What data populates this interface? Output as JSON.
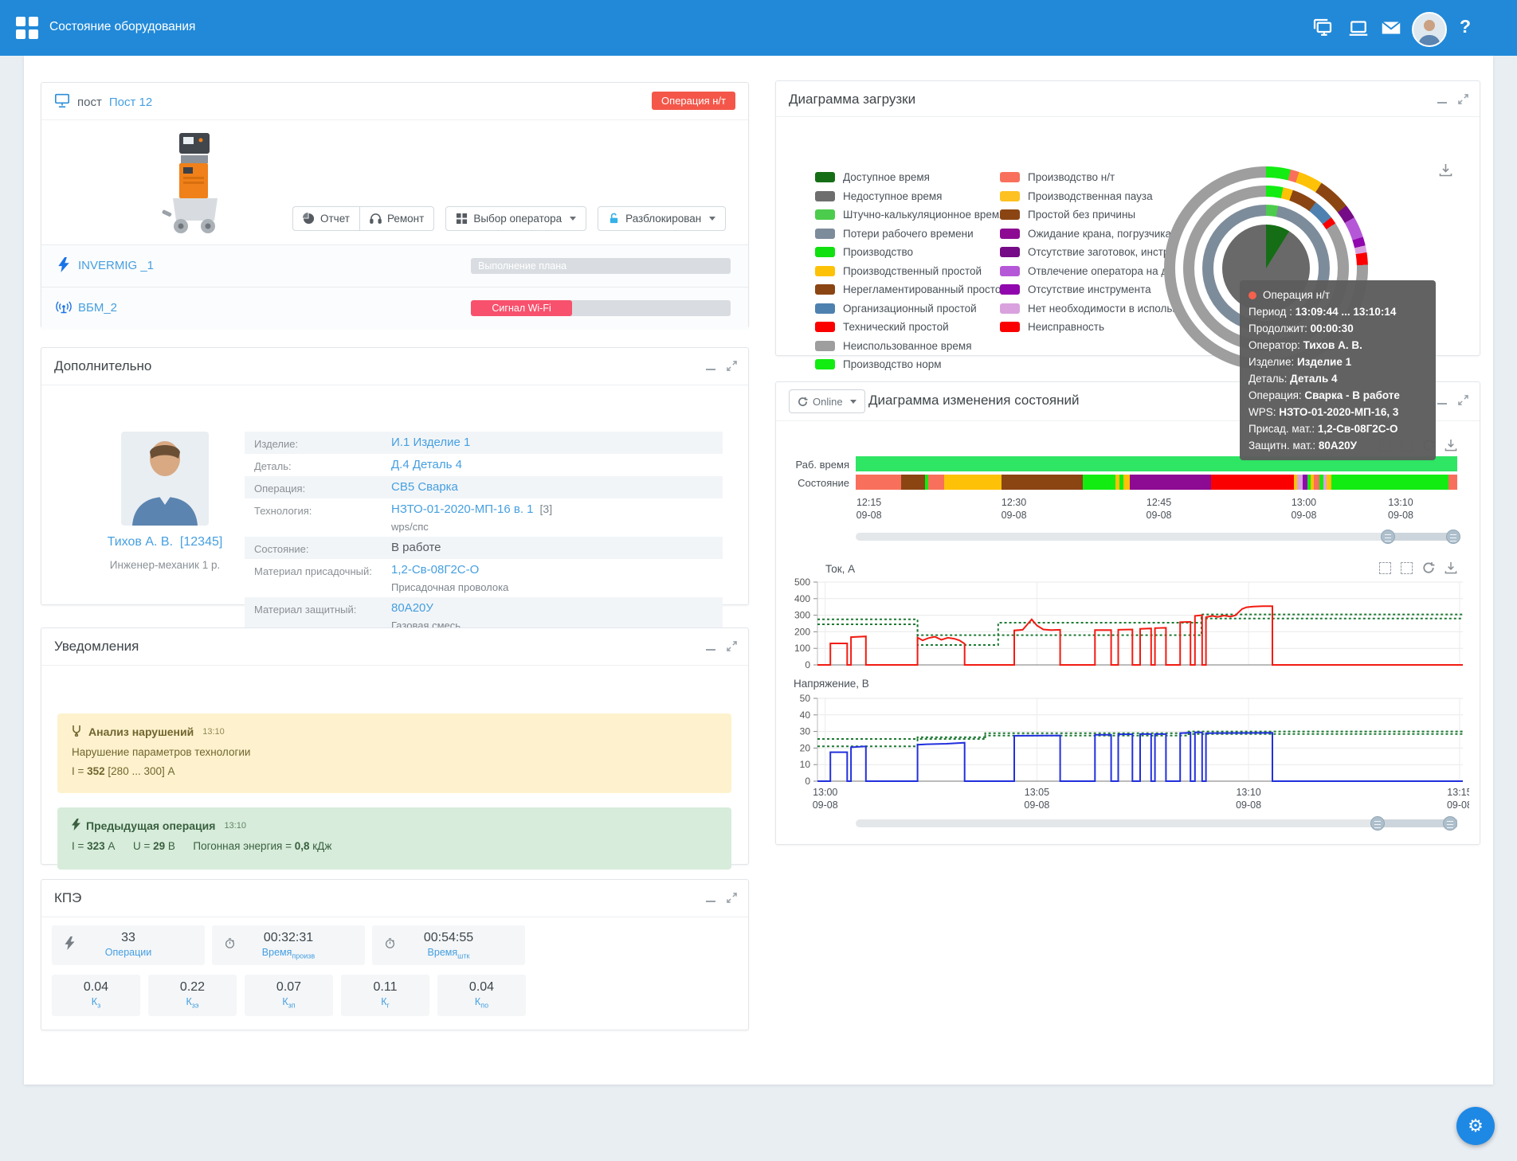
{
  "colors": {
    "topbar": "#2189d8",
    "link": "#459fe0",
    "badge_red": "#f4574a",
    "wifi_pink": "#f8516d",
    "series_current": "#f21b12",
    "series_voltage": "#2230dd",
    "series_bound": "#1d7a33",
    "worktime_green": "#2ee564",
    "tooltip_bg": "#5d5d5d"
  },
  "palette": {
    "darkgreen": "#156e15",
    "unavail": "#6e6e6e",
    "midgreen": "#4ccc4c",
    "slate": "#7d8c9b",
    "bright": "#10e010",
    "gold": "#fdc107",
    "brown": "#8b4513",
    "steel": "#4e81b0",
    "red": "#fb0000",
    "gray": "#9e9e9e",
    "norm": "#12ec12",
    "salmon": "#f8705c",
    "gold2": "#fdc121",
    "purple": "#8d0b92",
    "darkpurple": "#750b86",
    "orchid": "#b558d8",
    "violet": "#9007ad",
    "plum": "#d9a2de",
    "center_gray": "#696969"
  },
  "header": {
    "title": "Состояние оборудования"
  },
  "post_card": {
    "label": "пост",
    "name": "Пост 12",
    "status_badge": "Операция н/т",
    "buttons": [
      {
        "icon": "pie",
        "label": "Отчет",
        "caret": false
      },
      {
        "icon": "headset",
        "label": "Ремонт",
        "caret": false
      },
      {
        "icon": "grid",
        "label": "Выбор оператора",
        "caret": true
      },
      {
        "icon": "unlock",
        "label": "Разблокирован",
        "caret": true
      }
    ],
    "devices": [
      {
        "icon": "bolt",
        "name": "INVERMIG _1",
        "bar_label": "Выполнение плана",
        "bar_fill": 0
      },
      {
        "icon": "broadcast",
        "name": "ВБМ_2",
        "bar_label": "Сигнал Wi-Fi",
        "bar_fill": 39
      }
    ]
  },
  "details_card": {
    "title": "Дополнительно",
    "operator_name": "Тихов А. В.",
    "operator_id": "[12345]",
    "operator_role": "Инженер-механик 1 р.",
    "rows": [
      {
        "label": "Изделие:",
        "link": "И.1 Изделие 1"
      },
      {
        "label": "Деталь:",
        "link": "Д.4 Деталь 4"
      },
      {
        "label": "Операция:",
        "link": "СВ5 Сварка"
      },
      {
        "label": "Технология:",
        "link": "НЗТО-01-2020-МП-16 в. 1",
        "extra": "[3]",
        "sub": "wps/спс"
      },
      {
        "label": "Состояние:",
        "text": "В работе"
      },
      {
        "label": "Материал присадочный:",
        "link": "1,2-Св-08Г2С-О",
        "sub": "Присадочная проволока"
      },
      {
        "label": "Материал защитный:",
        "link": "80А20У",
        "sub": "Газовая смесь"
      }
    ]
  },
  "notifications_card": {
    "title": "Уведомления",
    "warning": {
      "title": "Анализ нарушений",
      "time": "13:10",
      "line": "Нарушение параметров технологии",
      "value_line": [
        [
          "I = ",
          false
        ],
        [
          "352",
          true
        ],
        [
          " [280 ... 300] А",
          false
        ]
      ]
    },
    "success": {
      "title": "Предыдущая операция",
      "time": "13:10",
      "value_line": [
        [
          "I = ",
          false
        ],
        [
          "323",
          true
        ],
        [
          " А",
          false
        ],
        [
          "      U = ",
          false
        ],
        [
          "29",
          true
        ],
        [
          " В",
          false
        ],
        [
          "      Погонная энергия = ",
          false
        ],
        [
          "0,8",
          true
        ],
        [
          " кДж",
          false
        ]
      ]
    }
  },
  "kpi_card": {
    "title": "КПЭ",
    "top": [
      {
        "icon": "bolt",
        "value": "33",
        "label": "Операции",
        "sub": ""
      },
      {
        "icon": "timer",
        "value": "00:32:31",
        "label": "Время",
        "sub": "произв"
      },
      {
        "icon": "timer",
        "value": "00:54:55",
        "label": "Время",
        "sub": "штк"
      }
    ],
    "bottom": [
      {
        "value": "0.04",
        "label": "К",
        "sub": "з"
      },
      {
        "value": "0.22",
        "label": "К",
        "sub": "зэ"
      },
      {
        "value": "0.07",
        "label": "К",
        "sub": "зп"
      },
      {
        "value": "0.11",
        "label": "К",
        "sub": "г"
      },
      {
        "value": "0.04",
        "label": "К",
        "sub": "по"
      }
    ]
  },
  "load_card": {
    "title": "Диаграмма загрузки",
    "legend_left": [
      {
        "color": "darkgreen",
        "label": "Доступное время"
      },
      {
        "color": "unavail",
        "label": "Недоступное время"
      },
      {
        "color": "midgreen",
        "label": "Штучно-калькуляционное время"
      },
      {
        "color": "slate",
        "label": "Потери рабочего времени"
      },
      {
        "color": "bright",
        "label": "Производство"
      },
      {
        "color": "gold",
        "label": "Производственный простой"
      },
      {
        "color": "brown",
        "label": "Нерегламентированный простой"
      },
      {
        "color": "steel",
        "label": "Организационный простой"
      },
      {
        "color": "red",
        "label": "Технический простой"
      },
      {
        "color": "gray",
        "label": "Неиспользованное время"
      },
      {
        "color": "norm",
        "label": "Производство норм"
      }
    ],
    "legend_right": [
      {
        "color": "salmon",
        "label": "Производство н/т"
      },
      {
        "color": "gold2",
        "label": "Производственная пауза"
      },
      {
        "color": "brown",
        "label": "Простой без причины"
      },
      {
        "color": "purple",
        "label": "Ожидание крана, погрузчика"
      },
      {
        "color": "darkpurple",
        "label": "Отсутствие заготовок, инструмента"
      },
      {
        "color": "orchid",
        "label": "Отвлечение оператора на др. работы"
      },
      {
        "color": "violet",
        "label": "Отсутствие инструмента"
      },
      {
        "color": "plum",
        "label": "Нет необходимости в использовании"
      },
      {
        "color": "red",
        "label": "Неисправность"
      }
    ]
  },
  "tooltip": {
    "title": "Операция н/т",
    "rows": [
      [
        "Период : ",
        "13:09:44 ... 13:10:14"
      ],
      [
        "Продолжит: ",
        "00:00:30"
      ],
      [
        "Оператор: ",
        "Тихов А. В."
      ],
      [
        "Изделие: ",
        "Изделие 1"
      ],
      [
        "Деталь: ",
        "Деталь 4"
      ],
      [
        "Операция: ",
        "Сварка - В работе"
      ],
      [
        "WPS: ",
        "НЗТО-01-2020-МП-16, 3"
      ],
      [
        "Присад. мат.: ",
        "1,2-Св-08Г2С-О"
      ],
      [
        "Защитн. мат.: ",
        "80А20У"
      ]
    ]
  },
  "states_card": {
    "title": "Диаграмма изменения состояний",
    "online_label": "Online",
    "worktime_label": "Раб. время",
    "state_label": "Состояние"
  },
  "chart_data": {
    "donut": {
      "type": "pie",
      "rings": [
        [
          [
            "norm",
            14
          ],
          [
            "salmon",
            5
          ],
          [
            "gold",
            14
          ],
          [
            "brown",
            19
          ],
          [
            "darkpurple",
            8
          ],
          [
            "orchid",
            12
          ],
          [
            "violet",
            5
          ],
          [
            "plum",
            4
          ],
          [
            "red",
            7
          ],
          [
            "gray",
            272
          ]
        ],
        [
          [
            "norm",
            12
          ],
          [
            "gold",
            7
          ],
          [
            "brown",
            18
          ],
          [
            "steel",
            15
          ],
          [
            "red",
            5
          ],
          [
            "gray",
            303
          ]
        ],
        [
          [
            "midgreen",
            11
          ],
          [
            "slate",
            349
          ]
        ]
      ],
      "center": [
        [
          "darkgreen",
          32
        ],
        [
          "center_gray",
          328
        ]
      ]
    },
    "state_timeline": {
      "type": "bar",
      "worktime_color": "#2ee564",
      "segments": [
        [
          "salmon",
          7.5
        ],
        [
          "brown",
          4
        ],
        [
          "norm",
          0.6
        ],
        [
          "salmon",
          2.6
        ],
        [
          "gold",
          9.5
        ],
        [
          "brown",
          13.5
        ],
        [
          "norm",
          5.5
        ],
        [
          "gold",
          0.7
        ],
        [
          "norm",
          0.6
        ],
        [
          "gold",
          1.1
        ],
        [
          "purple",
          13.5
        ],
        [
          "red",
          13.8
        ],
        [
          "gold",
          0.5
        ],
        [
          "plum",
          0.9
        ],
        [
          "violet",
          0.8
        ],
        [
          "norm",
          0.5
        ],
        [
          "gold",
          0.6
        ],
        [
          "salmon",
          0.9
        ],
        [
          "norm",
          0.7
        ],
        [
          "plum",
          0.5
        ],
        [
          "gold",
          0.8
        ],
        [
          "norm",
          19.4
        ],
        [
          "salmon",
          1.5
        ]
      ],
      "xticks": [
        {
          "t": "12:15",
          "f": 0.022
        },
        {
          "t": "12:30",
          "f": 0.263
        },
        {
          "t": "12:45",
          "f": 0.504
        },
        {
          "t": "13:00",
          "f": 0.745
        },
        {
          "t": "13:10",
          "f": 0.906
        }
      ],
      "date": "09-08"
    },
    "current": {
      "type": "line",
      "title": "Ток, А",
      "ylim": [
        0,
        500
      ],
      "yticks": [
        0,
        100,
        200,
        300,
        400,
        500
      ],
      "line": [
        [
          0,
          0
        ],
        [
          0.02,
          0
        ],
        [
          0.02,
          130
        ],
        [
          0.046,
          130
        ],
        [
          0.046,
          0
        ],
        [
          0.052,
          0
        ],
        [
          0.052,
          168
        ],
        [
          0.075,
          172
        ],
        [
          0.075,
          0
        ],
        [
          0.155,
          0
        ],
        [
          0.155,
          165
        ],
        [
          0.163,
          148
        ],
        [
          0.172,
          162
        ],
        [
          0.182,
          170
        ],
        [
          0.192,
          152
        ],
        [
          0.202,
          164
        ],
        [
          0.212,
          158
        ],
        [
          0.22,
          148
        ],
        [
          0.228,
          128
        ],
        [
          0.228,
          0
        ],
        [
          0.305,
          0
        ],
        [
          0.305,
          208
        ],
        [
          0.318,
          212
        ],
        [
          0.326,
          248
        ],
        [
          0.332,
          275
        ],
        [
          0.34,
          238
        ],
        [
          0.35,
          214
        ],
        [
          0.362,
          210
        ],
        [
          0.376,
          212
        ],
        [
          0.376,
          0
        ],
        [
          0.43,
          0
        ],
        [
          0.43,
          210
        ],
        [
          0.455,
          210
        ],
        [
          0.455,
          0
        ],
        [
          0.466,
          0
        ],
        [
          0.466,
          212
        ],
        [
          0.488,
          214
        ],
        [
          0.488,
          0
        ],
        [
          0.5,
          0
        ],
        [
          0.5,
          218
        ],
        [
          0.517,
          220
        ],
        [
          0.517,
          0
        ],
        [
          0.523,
          0
        ],
        [
          0.523,
          222
        ],
        [
          0.54,
          224
        ],
        [
          0.54,
          0
        ],
        [
          0.562,
          0
        ],
        [
          0.562,
          258
        ],
        [
          0.578,
          260
        ],
        [
          0.578,
          0
        ],
        [
          0.585,
          0
        ],
        [
          0.585,
          296
        ],
        [
          0.596,
          300
        ],
        [
          0.596,
          0
        ],
        [
          0.602,
          0
        ],
        [
          0.602,
          288
        ],
        [
          0.612,
          296
        ],
        [
          0.62,
          290
        ],
        [
          0.63,
          298
        ],
        [
          0.64,
          292
        ],
        [
          0.648,
          300
        ],
        [
          0.652,
          316
        ],
        [
          0.658,
          338
        ],
        [
          0.665,
          348
        ],
        [
          0.675,
          352
        ],
        [
          0.69,
          355
        ],
        [
          0.705,
          355
        ],
        [
          0.705,
          0
        ],
        [
          1,
          0
        ]
      ],
      "upper": [
        [
          0,
          275
        ],
        [
          0.155,
          275
        ],
        [
          0.155,
          180
        ],
        [
          0.28,
          180
        ],
        [
          0.28,
          255
        ],
        [
          0.595,
          255
        ],
        [
          0.595,
          305
        ],
        [
          1,
          305
        ]
      ],
      "lower": [
        [
          0,
          245
        ],
        [
          0.155,
          245
        ],
        [
          0.155,
          120
        ],
        [
          0.28,
          120
        ],
        [
          0.28,
          180
        ],
        [
          0.595,
          180
        ],
        [
          0.595,
          280
        ],
        [
          1,
          280
        ]
      ]
    },
    "voltage": {
      "type": "line",
      "title": "Напряжение, В",
      "ylim": [
        0,
        50
      ],
      "yticks": [
        0,
        10,
        20,
        30,
        40,
        50
      ],
      "line": [
        [
          0,
          0
        ],
        [
          0.02,
          0
        ],
        [
          0.02,
          17.5
        ],
        [
          0.046,
          17.5
        ],
        [
          0.046,
          0
        ],
        [
          0.052,
          0
        ],
        [
          0.052,
          20.5
        ],
        [
          0.075,
          21
        ],
        [
          0.075,
          0
        ],
        [
          0.155,
          0
        ],
        [
          0.155,
          22
        ],
        [
          0.17,
          22.3
        ],
        [
          0.2,
          22.6
        ],
        [
          0.228,
          23.2
        ],
        [
          0.228,
          0
        ],
        [
          0.305,
          0
        ],
        [
          0.305,
          27.4
        ],
        [
          0.376,
          27.6
        ],
        [
          0.376,
          0
        ],
        [
          0.43,
          0
        ],
        [
          0.43,
          28
        ],
        [
          0.455,
          28
        ],
        [
          0.455,
          0
        ],
        [
          0.466,
          0
        ],
        [
          0.466,
          28.3
        ],
        [
          0.488,
          28.3
        ],
        [
          0.488,
          0
        ],
        [
          0.5,
          0
        ],
        [
          0.5,
          28.4
        ],
        [
          0.517,
          28.4
        ],
        [
          0.517,
          0
        ],
        [
          0.523,
          0
        ],
        [
          0.523,
          28.4
        ],
        [
          0.54,
          28.4
        ],
        [
          0.54,
          0
        ],
        [
          0.562,
          0
        ],
        [
          0.562,
          29
        ],
        [
          0.578,
          29.3
        ],
        [
          0.578,
          0
        ],
        [
          0.585,
          0
        ],
        [
          0.585,
          29.4
        ],
        [
          0.596,
          29.4
        ],
        [
          0.596,
          0
        ],
        [
          0.602,
          0
        ],
        [
          0.602,
          29
        ],
        [
          0.705,
          29.2
        ],
        [
          0.705,
          0
        ],
        [
          1,
          0
        ]
      ],
      "upper": [
        [
          0,
          25.5
        ],
        [
          0.155,
          25.5
        ],
        [
          0.155,
          26.5
        ],
        [
          0.26,
          26.5
        ],
        [
          0.26,
          29
        ],
        [
          0.575,
          29
        ],
        [
          0.575,
          30
        ],
        [
          1,
          30
        ]
      ],
      "lower": [
        [
          0,
          21
        ],
        [
          0.155,
          21
        ],
        [
          0.155,
          25.5
        ],
        [
          0.26,
          25.5
        ],
        [
          0.26,
          27.5
        ],
        [
          0.575,
          27.5
        ],
        [
          0.575,
          28.5
        ],
        [
          1,
          28.5
        ]
      ],
      "xticks": [
        {
          "t": "13:00",
          "f": 0.012
        },
        {
          "t": "13:05",
          "f": 0.34
        },
        {
          "t": "13:10",
          "f": 0.668
        },
        {
          "t": "13:15",
          "f": 0.995
        }
      ],
      "date": "09-08"
    }
  }
}
